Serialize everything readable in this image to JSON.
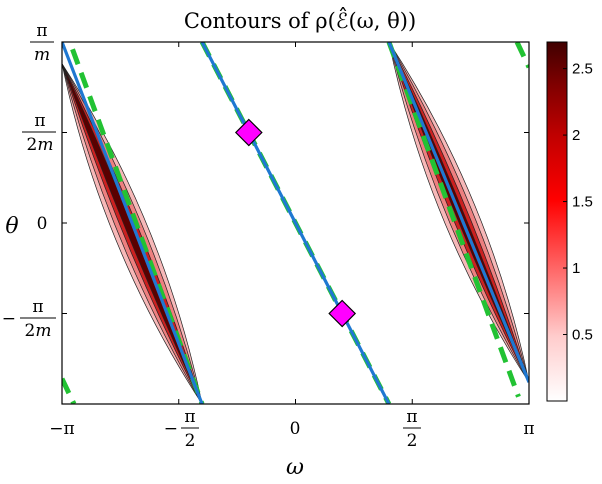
{
  "chart_data": {
    "type": "contour",
    "title": "Contours of ρ(ℰ̂(ω, θ))",
    "xlabel": "ω",
    "ylabel": "θ",
    "xlim": [
      -3.14159,
      3.14159
    ],
    "ylim": [
      -1,
      1
    ],
    "y_units": "π/m",
    "x_ticks": [
      {
        "value": -3.14159,
        "label": "−π"
      },
      {
        "value": -1.5708,
        "label": "−π/2"
      },
      {
        "value": 0,
        "label": "0"
      },
      {
        "value": 1.5708,
        "label": "π/2"
      },
      {
        "value": 3.14159,
        "label": "π"
      }
    ],
    "y_ticks": [
      {
        "value": 1,
        "label": "π/m"
      },
      {
        "value": 0.5,
        "label": "π/2m"
      },
      {
        "value": 0,
        "label": "0"
      },
      {
        "value": -0.5,
        "label": "−π/2m"
      }
    ],
    "colorbar": {
      "range": [
        0,
        2.7
      ],
      "ticks": [
        0.5,
        1,
        1.5,
        2,
        2.5
      ],
      "tick_labels": [
        "0.5",
        "1",
        "1.5",
        "2",
        "2.5"
      ],
      "colors": [
        "#ffffff",
        "#ffcccc",
        "#ff6666",
        "#ff0000",
        "#c00000",
        "#800000",
        "#400000"
      ]
    },
    "bands": [
      {
        "center": [
          [
            -3.14159,
            0.88
          ],
          [
            -1.257,
            -1.0
          ]
        ],
        "width_levels": [
          0.52,
          0.38,
          0.24,
          0.12
        ],
        "fill_levels": [
          "#f7b8b8",
          "#ee7f7f",
          "#cc2020",
          "#5a0000"
        ]
      },
      {
        "center": [
          [
            1.257,
            1.0
          ],
          [
            3.14159,
            -0.88
          ]
        ],
        "width_levels": [
          0.52,
          0.38,
          0.24,
          0.12
        ],
        "fill_levels": [
          "#f7b8b8",
          "#ee7f7f",
          "#cc2020",
          "#5a0000"
        ]
      }
    ],
    "blue_lines": [
      [
        [
          -3.14159,
          1.0
        ],
        [
          -1.257,
          -1.0
        ]
      ],
      [
        [
          -1.257,
          1.0
        ],
        [
          1.257,
          -1.0
        ]
      ],
      [
        [
          1.257,
          1.0
        ],
        [
          3.14159,
          -0.88
        ]
      ]
    ],
    "green_dashed_lines": [
      [
        [
          -3.0,
          0.96
        ],
        [
          -1.257,
          -1.0
        ]
      ],
      [
        [
          -1.257,
          1.0
        ],
        [
          1.257,
          -1.0
        ]
      ],
      [
        [
          1.257,
          1.0
        ],
        [
          3.0,
          -0.96
        ]
      ],
      [
        [
          2.98,
          1.0
        ],
        [
          3.14159,
          0.86
        ]
      ],
      [
        [
          -3.14159,
          -0.86
        ],
        [
          -2.98,
          -1.0
        ]
      ]
    ],
    "markers": [
      {
        "shape": "diamond",
        "color": "#ff00ff",
        "x": -0.628,
        "y": 0.5
      },
      {
        "shape": "diamond",
        "color": "#ff00ff",
        "x": 0.628,
        "y": -0.5
      }
    ]
  }
}
